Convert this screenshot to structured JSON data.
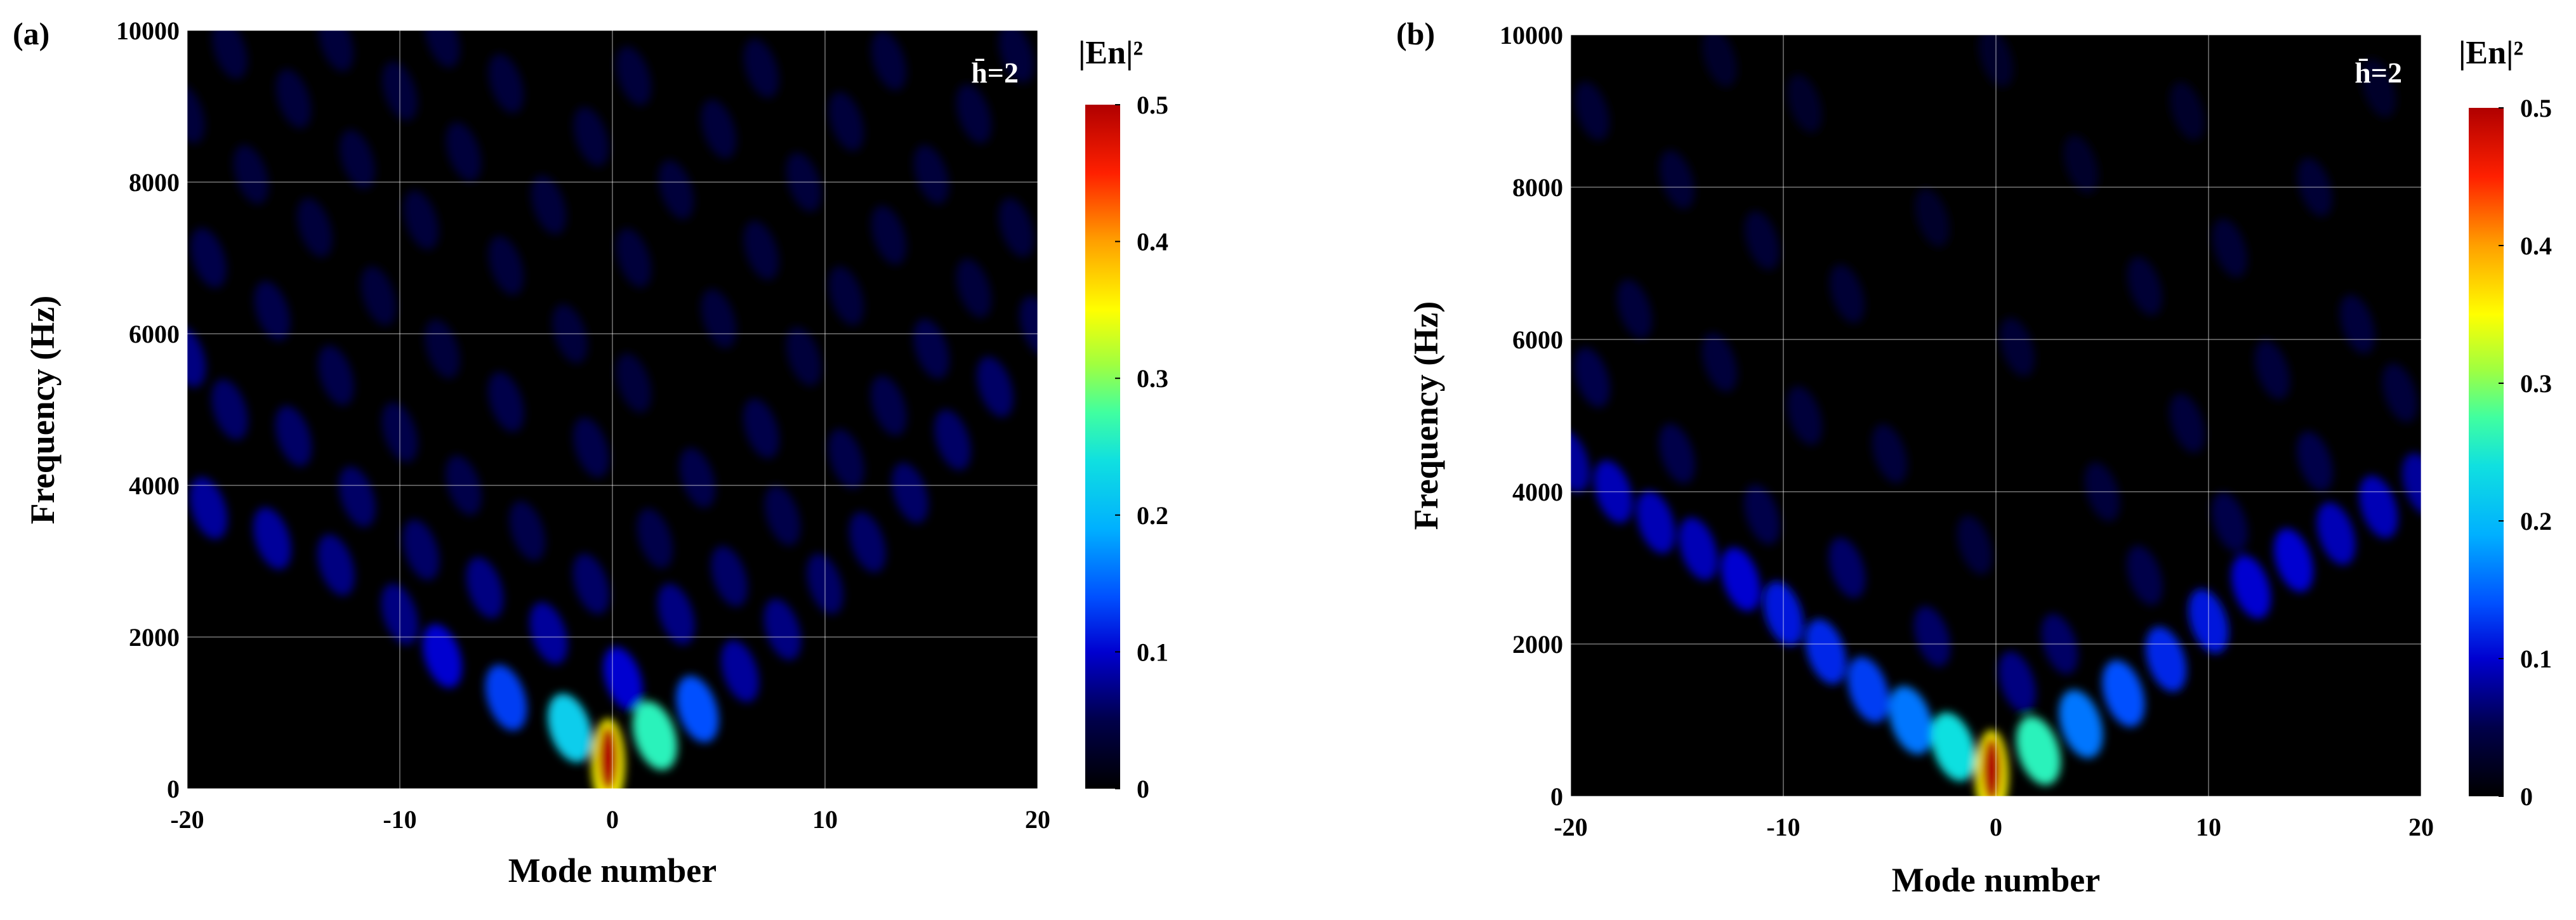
{
  "chart_data": [
    {
      "type": "heatmap",
      "panel_label": "(a)",
      "annotation": "h̄=2",
      "xlabel": "Mode number",
      "ylabel": "Frequency (Hz)",
      "xlim": [
        -20,
        20
      ],
      "ylim": [
        0,
        10000
      ],
      "xticks": [
        "-20",
        "-10",
        "0",
        "10",
        "20"
      ],
      "yticks": [
        "0",
        "2000",
        "4000",
        "6000",
        "8000",
        "10000"
      ],
      "colorbar": {
        "title": "|En|²",
        "range": [
          0,
          0.5
        ],
        "ticks": [
          "0",
          "0.1",
          "0.2",
          "0.3",
          "0.4",
          "0.5"
        ]
      },
      "blobs": [
        {
          "mode": -0.2,
          "freq": 400,
          "value": 0.5
        },
        {
          "mode": 2,
          "freq": 700,
          "value": 0.26
        },
        {
          "mode": -2,
          "freq": 800,
          "value": 0.22
        },
        {
          "mode": 4,
          "freq": 1050,
          "value": 0.14
        },
        {
          "mode": -5,
          "freq": 1200,
          "value": 0.13
        },
        {
          "mode": 0.5,
          "freq": 1450,
          "value": 0.1
        },
        {
          "mode": -8,
          "freq": 1750,
          "value": 0.1
        },
        {
          "mode": 6,
          "freq": 1550,
          "value": 0.08
        },
        {
          "mode": -3,
          "freq": 2050,
          "value": 0.08
        },
        {
          "mode": 3,
          "freq": 2300,
          "value": 0.07
        },
        {
          "mode": 8,
          "freq": 2100,
          "value": 0.07
        },
        {
          "mode": -10,
          "freq": 2300,
          "value": 0.07
        },
        {
          "mode": -6,
          "freq": 2650,
          "value": 0.07
        },
        {
          "mode": -1,
          "freq": 2700,
          "value": 0.06
        },
        {
          "mode": 5.5,
          "freq": 2800,
          "value": 0.06
        },
        {
          "mode": 10,
          "freq": 2700,
          "value": 0.06
        },
        {
          "mode": -13,
          "freq": 2950,
          "value": 0.07
        },
        {
          "mode": -9,
          "freq": 3150,
          "value": 0.06
        },
        {
          "mode": -16,
          "freq": 3300,
          "value": 0.08
        },
        {
          "mode": 12,
          "freq": 3250,
          "value": 0.06
        },
        {
          "mode": -4,
          "freq": 3400,
          "value": 0.05
        },
        {
          "mode": 2,
          "freq": 3300,
          "value": 0.05
        },
        {
          "mode": 8,
          "freq": 3600,
          "value": 0.05
        },
        {
          "mode": -19,
          "freq": 3700,
          "value": 0.08
        },
        {
          "mode": -12,
          "freq": 3850,
          "value": 0.06
        },
        {
          "mode": 14,
          "freq": 3900,
          "value": 0.06
        },
        {
          "mode": -7,
          "freq": 4000,
          "value": 0.05
        },
        {
          "mode": 4,
          "freq": 4100,
          "value": 0.05
        },
        {
          "mode": 11,
          "freq": 4350,
          "value": 0.05
        },
        {
          "mode": -15,
          "freq": 4650,
          "value": 0.06
        },
        {
          "mode": 16,
          "freq": 4600,
          "value": 0.06
        },
        {
          "mode": -10,
          "freq": 4700,
          "value": 0.05
        },
        {
          "mode": -1,
          "freq": 4500,
          "value": 0.05
        },
        {
          "mode": 7,
          "freq": 4750,
          "value": 0.05
        },
        {
          "mode": -18,
          "freq": 5000,
          "value": 0.06
        },
        {
          "mode": 13,
          "freq": 5050,
          "value": 0.05
        },
        {
          "mode": -5,
          "freq": 5100,
          "value": 0.05
        },
        {
          "mode": 18,
          "freq": 5300,
          "value": 0.06
        },
        {
          "mode": 1,
          "freq": 5350,
          "value": 0.04
        },
        {
          "mode": -13,
          "freq": 5450,
          "value": 0.05
        },
        {
          "mode": -20,
          "freq": 5700,
          "value": 0.07
        },
        {
          "mode": 9,
          "freq": 5700,
          "value": 0.04
        },
        {
          "mode": -8,
          "freq": 5800,
          "value": 0.04
        },
        {
          "mode": 15,
          "freq": 5800,
          "value": 0.05
        },
        {
          "mode": 20,
          "freq": 6100,
          "value": 0.05
        },
        {
          "mode": -2,
          "freq": 6000,
          "value": 0.04
        },
        {
          "mode": 5,
          "freq": 6200,
          "value": 0.04
        },
        {
          "mode": -16,
          "freq": 6300,
          "value": 0.05
        },
        {
          "mode": -11,
          "freq": 6500,
          "value": 0.04
        },
        {
          "mode": 11,
          "freq": 6500,
          "value": 0.04
        },
        {
          "mode": 17,
          "freq": 6600,
          "value": 0.04
        },
        {
          "mode": -19,
          "freq": 7000,
          "value": 0.05
        },
        {
          "mode": -5,
          "freq": 6900,
          "value": 0.04
        },
        {
          "mode": 1,
          "freq": 7000,
          "value": 0.04
        },
        {
          "mode": 7,
          "freq": 7100,
          "value": 0.04
        },
        {
          "mode": 13,
          "freq": 7300,
          "value": 0.04
        },
        {
          "mode": -14,
          "freq": 7400,
          "value": 0.04
        },
        {
          "mode": -9,
          "freq": 7500,
          "value": 0.04
        },
        {
          "mode": 19,
          "freq": 7400,
          "value": 0.04
        },
        {
          "mode": -3,
          "freq": 7700,
          "value": 0.04
        },
        {
          "mode": 3,
          "freq": 7900,
          "value": 0.04
        },
        {
          "mode": 9,
          "freq": 8000,
          "value": 0.04
        },
        {
          "mode": -17,
          "freq": 8100,
          "value": 0.04
        },
        {
          "mode": 15,
          "freq": 8100,
          "value": 0.04
        },
        {
          "mode": -12,
          "freq": 8300,
          "value": 0.04
        },
        {
          "mode": -7,
          "freq": 8400,
          "value": 0.04
        },
        {
          "mode": -1,
          "freq": 8600,
          "value": 0.04
        },
        {
          "mode": 5,
          "freq": 8700,
          "value": 0.04
        },
        {
          "mode": 11,
          "freq": 8800,
          "value": 0.04
        },
        {
          "mode": -20,
          "freq": 8900,
          "value": 0.04
        },
        {
          "mode": 17,
          "freq": 8900,
          "value": 0.04
        },
        {
          "mode": -15,
          "freq": 9100,
          "value": 0.04
        },
        {
          "mode": -10,
          "freq": 9200,
          "value": 0.04
        },
        {
          "mode": -5,
          "freq": 9300,
          "value": 0.04
        },
        {
          "mode": 1,
          "freq": 9400,
          "value": 0.04
        },
        {
          "mode": 7,
          "freq": 9500,
          "value": 0.04
        },
        {
          "mode": 13,
          "freq": 9600,
          "value": 0.04
        },
        {
          "mode": -18,
          "freq": 9750,
          "value": 0.04
        },
        {
          "mode": -13,
          "freq": 9850,
          "value": 0.04
        },
        {
          "mode": -8,
          "freq": 9900,
          "value": 0.04
        },
        {
          "mode": 19,
          "freq": 9700,
          "value": 0.04
        }
      ]
    },
    {
      "type": "heatmap",
      "panel_label": "(b)",
      "annotation": "h̄=2",
      "xlabel": "Mode number",
      "ylabel": "Frequency (Hz)",
      "xlim": [
        -20,
        20
      ],
      "ylim": [
        0,
        10000
      ],
      "xticks": [
        "-20",
        "-10",
        "0",
        "10",
        "20"
      ],
      "yticks": [
        "0",
        "2000",
        "4000",
        "6000",
        "8000",
        "10000"
      ],
      "colorbar": {
        "title": "|En|²",
        "range": [
          0,
          0.5
        ],
        "ticks": [
          "0",
          "0.1",
          "0.2",
          "0.3",
          "0.4",
          "0.5"
        ]
      },
      "blobs": [
        {
          "mode": -0.2,
          "freq": 350,
          "value": 0.5
        },
        {
          "mode": 2,
          "freq": 600,
          "value": 0.26
        },
        {
          "mode": -2,
          "freq": 650,
          "value": 0.24
        },
        {
          "mode": 4,
          "freq": 950,
          "value": 0.16
        },
        {
          "mode": -4,
          "freq": 1000,
          "value": 0.16
        },
        {
          "mode": 6,
          "freq": 1350,
          "value": 0.14
        },
        {
          "mode": -6,
          "freq": 1400,
          "value": 0.13
        },
        {
          "mode": 8,
          "freq": 1800,
          "value": 0.12
        },
        {
          "mode": -8,
          "freq": 1900,
          "value": 0.12
        },
        {
          "mode": 10,
          "freq": 2300,
          "value": 0.11
        },
        {
          "mode": -10,
          "freq": 2400,
          "value": 0.11
        },
        {
          "mode": 12,
          "freq": 2750,
          "value": 0.1
        },
        {
          "mode": -12,
          "freq": 2850,
          "value": 0.1
        },
        {
          "mode": 14,
          "freq": 3100,
          "value": 0.1
        },
        {
          "mode": -14,
          "freq": 3250,
          "value": 0.09
        },
        {
          "mode": 16,
          "freq": 3450,
          "value": 0.09
        },
        {
          "mode": -16,
          "freq": 3600,
          "value": 0.09
        },
        {
          "mode": 18,
          "freq": 3800,
          "value": 0.09
        },
        {
          "mode": -18,
          "freq": 4000,
          "value": 0.09
        },
        {
          "mode": 20,
          "freq": 4100,
          "value": 0.08
        },
        {
          "mode": -20,
          "freq": 4400,
          "value": 0.08
        },
        {
          "mode": 1,
          "freq": 1500,
          "value": 0.07
        },
        {
          "mode": -3,
          "freq": 2100,
          "value": 0.06
        },
        {
          "mode": 3,
          "freq": 2000,
          "value": 0.06
        },
        {
          "mode": -7,
          "freq": 3000,
          "value": 0.06
        },
        {
          "mode": 7,
          "freq": 2900,
          "value": 0.05
        },
        {
          "mode": -11,
          "freq": 3700,
          "value": 0.05
        },
        {
          "mode": 11,
          "freq": 3600,
          "value": 0.05
        },
        {
          "mode": -1,
          "freq": 3300,
          "value": 0.04
        },
        {
          "mode": 5,
          "freq": 4000,
          "value": 0.04
        },
        {
          "mode": -15,
          "freq": 4500,
          "value": 0.05
        },
        {
          "mode": 15,
          "freq": 4400,
          "value": 0.05
        },
        {
          "mode": -5,
          "freq": 4500,
          "value": 0.04
        },
        {
          "mode": -9,
          "freq": 5000,
          "value": 0.04
        },
        {
          "mode": 9,
          "freq": 4900,
          "value": 0.04
        },
        {
          "mode": -19,
          "freq": 5500,
          "value": 0.05
        },
        {
          "mode": 19,
          "freq": 5300,
          "value": 0.04
        },
        {
          "mode": -13,
          "freq": 5700,
          "value": 0.04
        },
        {
          "mode": 13,
          "freq": 5600,
          "value": 0.04
        },
        {
          "mode": 1,
          "freq": 5900,
          "value": 0.035
        },
        {
          "mode": -17,
          "freq": 6400,
          "value": 0.04
        },
        {
          "mode": 17,
          "freq": 6200,
          "value": 0.04
        },
        {
          "mode": -7,
          "freq": 6600,
          "value": 0.035
        },
        {
          "mode": 7,
          "freq": 6700,
          "value": 0.035
        },
        {
          "mode": -11,
          "freq": 7300,
          "value": 0.035
        },
        {
          "mode": 11,
          "freq": 7200,
          "value": 0.035
        },
        {
          "mode": -3,
          "freq": 7600,
          "value": 0.03
        },
        {
          "mode": -15,
          "freq": 8100,
          "value": 0.035
        },
        {
          "mode": 15,
          "freq": 8000,
          "value": 0.035
        },
        {
          "mode": 4,
          "freq": 8300,
          "value": 0.03
        },
        {
          "mode": -19,
          "freq": 9000,
          "value": 0.035
        },
        {
          "mode": -9,
          "freq": 9100,
          "value": 0.03
        },
        {
          "mode": 9,
          "freq": 9000,
          "value": 0.03
        },
        {
          "mode": 18,
          "freq": 9300,
          "value": 0.03
        },
        {
          "mode": -13,
          "freq": 9700,
          "value": 0.03
        },
        {
          "mode": 0,
          "freq": 9700,
          "value": 0.03
        }
      ]
    }
  ]
}
